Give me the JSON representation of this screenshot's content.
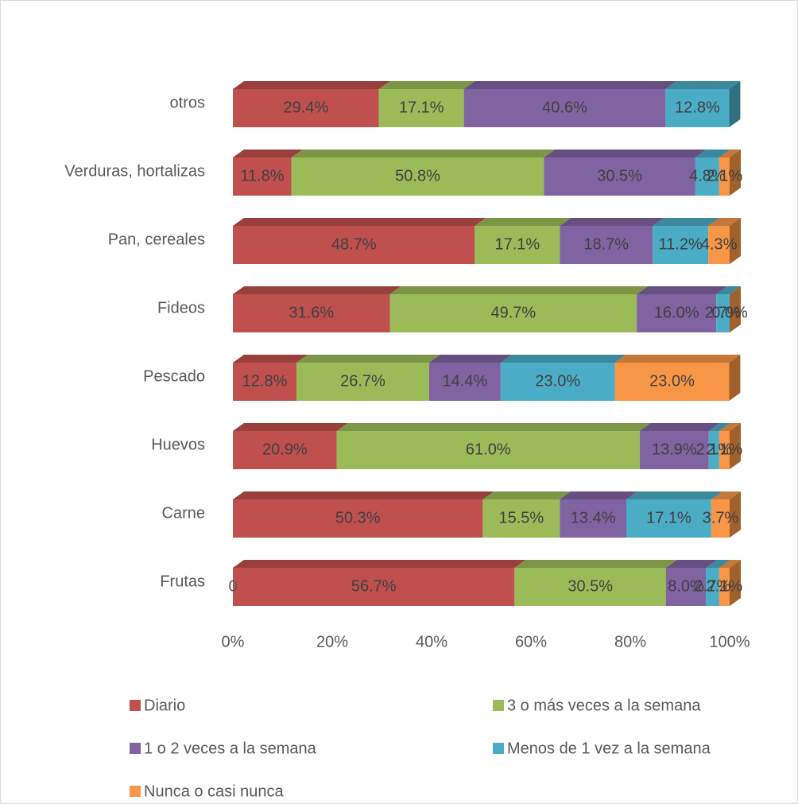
{
  "chart_data": {
    "type": "bar",
    "orientation": "horizontal",
    "stacked": "percent",
    "categories": [
      "Frutas",
      "Carne",
      "Huevos",
      "Pescado",
      "Fideos",
      "Pan, cereales",
      "Verduras, hortalizas",
      "otros"
    ],
    "series": [
      {
        "name": "Diario",
        "color": "#c0504d",
        "values": [
          56.7,
          50.3,
          20.9,
          12.8,
          31.6,
          48.7,
          11.8,
          29.4
        ],
        "value_labels": [
          "56.7%",
          "50.3%",
          "20.9%",
          "12.8%",
          "31.6%",
          "48.7%",
          "11.8%",
          "29.4%"
        ]
      },
      {
        "name": "3 o más veces a la semana",
        "color": "#9bbb59",
        "values": [
          30.5,
          15.5,
          61.0,
          26.7,
          49.7,
          17.1,
          50.8,
          17.1
        ],
        "value_labels": [
          "30.5%",
          "15.5%",
          "61.0%",
          "26.7%",
          "49.7%",
          "17.1%",
          "50.8%",
          "17.1%"
        ]
      },
      {
        "name": "1 o 2 veces a la semana",
        "color": "#8064a2",
        "values": [
          8.0,
          13.4,
          13.9,
          14.4,
          16.0,
          18.7,
          30.5,
          40.6
        ],
        "value_labels": [
          "8.0%",
          "13.4%",
          "13.9%",
          "14.4%",
          "16.0%",
          "18.7%",
          "30.5%",
          "40.6%"
        ]
      },
      {
        "name": "Menos de 1 vez a la semana",
        "color": "#4bacc6",
        "values": [
          2.7,
          17.1,
          2.1,
          23.0,
          2.7,
          11.2,
          4.8,
          12.8
        ],
        "value_labels": [
          "2.7%",
          "17.1%",
          "2.1%",
          "23.0%",
          "2.7%",
          "11.2%",
          "4.8%",
          "12.8%"
        ]
      },
      {
        "name": "Nunca o casi nunca",
        "color": "#f79646",
        "values": [
          2.1,
          3.7,
          2.1,
          23.0,
          0.0,
          4.3,
          2.1,
          null
        ],
        "value_labels": [
          "2.1%",
          "3.7%",
          "2.1%",
          "23.0%",
          "0.0%",
          "4.3%",
          "2.1%",
          null
        ]
      }
    ],
    "annotations": [
      "0"
    ],
    "xlim": [
      0,
      100
    ],
    "xticks": [
      {
        "value": 0,
        "label": "0%"
      },
      {
        "value": 20,
        "label": "20%"
      },
      {
        "value": 40,
        "label": "40%"
      },
      {
        "value": 60,
        "label": "60%"
      },
      {
        "value": 80,
        "label": "80%"
      },
      {
        "value": 100,
        "label": "100%"
      }
    ],
    "legend": "bottom"
  }
}
